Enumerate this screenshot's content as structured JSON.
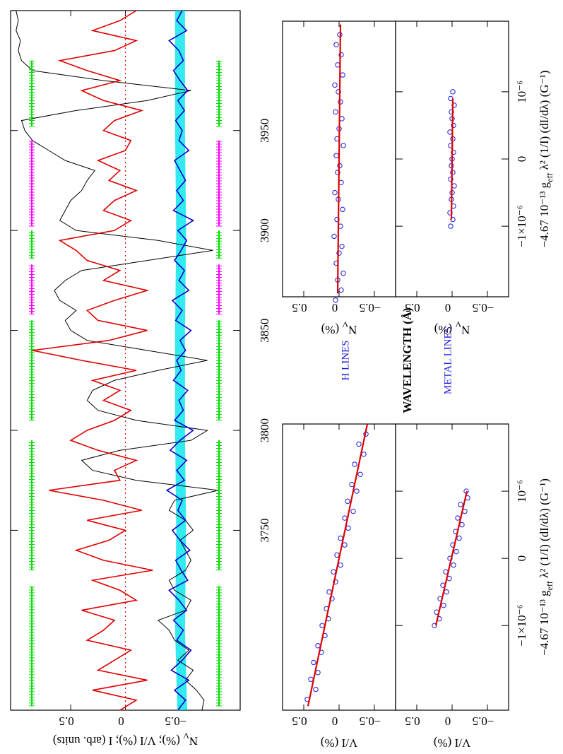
{
  "labels": {
    "h_lines": "H LINES",
    "metal_lines": "METAL LINES"
  },
  "chart_data": [
    {
      "type": "line",
      "xlim": [
        3660,
        4010
      ],
      "xticks": [
        3750,
        3800,
        3850,
        3900,
        3950
      ],
      "ylim": [
        -1.05,
        1.05
      ],
      "yticks": [
        0.5,
        0,
        {
          "value": -0.5,
          "label": "−0.5"
        }
      ],
      "xlabel": "WAVELENGTH (Å)",
      "ylabel": {
        "pre": "N",
        "sub": "V",
        "post": " (%); V/I (%); I (arb. units)"
      },
      "zero_line": true,
      "x": [
        3660,
        3665,
        3670,
        3675,
        3680,
        3685,
        3690,
        3695,
        3700,
        3705,
        3710,
        3715,
        3720,
        3725,
        3730,
        3735,
        3740,
        3745,
        3750,
        3755,
        3760,
        3765,
        3770,
        3775,
        3780,
        3785,
        3790,
        3795,
        3800,
        3805,
        3810,
        3815,
        3820,
        3825,
        3830,
        3835,
        3840,
        3845,
        3850,
        3855,
        3860,
        3865,
        3870,
        3875,
        3880,
        3885,
        3890,
        3895,
        3900,
        3905,
        3910,
        3915,
        3920,
        3925,
        3930,
        3935,
        3940,
        3945,
        3950,
        3955,
        3960,
        3965,
        3970,
        3975,
        3980,
        3985,
        3990,
        3995,
        4000,
        4005,
        4010
      ],
      "series": [
        {
          "color": "#000000",
          "values": [
            -0.7,
            -0.72,
            -0.65,
            -0.55,
            -0.62,
            -0.48,
            -0.58,
            -0.45,
            -0.4,
            -0.3,
            -0.55,
            -0.6,
            -0.45,
            -0.4,
            -0.55,
            -0.6,
            -0.55,
            -0.5,
            -0.62,
            -0.55,
            -0.4,
            -0.45,
            -0.85,
            -0.1,
            0.3,
            0.4,
            0.05,
            -0.6,
            -0.75,
            -0.1,
            0.25,
            0.35,
            0.3,
            0.1,
            -0.3,
            -0.75,
            -0.2,
            0.35,
            0.5,
            0.55,
            0.45,
            0.6,
            0.65,
            0.55,
            0.4,
            -0.2,
            -0.8,
            -0.3,
            0.45,
            0.6,
            0.55,
            0.5,
            0.4,
            0.35,
            0.28,
            0.55,
            0.7,
            0.85,
            0.92,
            0.95,
            0.45,
            -0.2,
            -0.6,
            0.2,
            0.85,
            0.95,
            0.98,
            0.96,
            1.0,
            0.98,
            1.0
          ]
        },
        {
          "color": "#e00000",
          "values": [
            0.05,
            -0.1,
            0.3,
            -0.2,
            0.25,
            0.1,
            -0.05,
            0.35,
            0.2,
            0.1,
            0.4,
            -0.1,
            0.05,
            0.3,
            -0.25,
            0.2,
            0.45,
            0.15,
            0.0,
            0.35,
            -0.15,
            0.2,
            0.7,
            0.05,
            0.1,
            -0.1,
            0.25,
            0.5,
            0.35,
            0.1,
            -0.05,
            0.2,
            0.05,
            0.3,
            -0.1,
            0.4,
            0.85,
            0.15,
            -0.2,
            0.25,
            0.35,
            0.1,
            -0.2,
            0.2,
            0.05,
            0.35,
            0.45,
            0.6,
            0.1,
            -0.05,
            0.2,
            0.1,
            -0.1,
            0.15,
            0.05,
            0.25,
            0.0,
            -0.05,
            0.2,
            0.1,
            -0.15,
            0.2,
            0.4,
            0.05,
            0.35,
            0.6,
            0.1,
            -0.1,
            0.3,
            0.05,
            -0.1
          ]
        },
        {
          "color": "#0000cc",
          "values": [
            -0.48,
            -0.55,
            -0.45,
            -0.58,
            -0.42,
            -0.52,
            -0.6,
            -0.47,
            -0.53,
            -0.44,
            -0.56,
            -0.49,
            -0.4,
            -0.57,
            -0.51,
            -0.46,
            -0.59,
            -0.5,
            -0.43,
            -0.55,
            -0.48,
            -0.52,
            -0.38,
            -0.54,
            -0.47,
            -0.56,
            -0.41,
            -0.5,
            -0.62,
            -0.45,
            -0.53,
            -0.49,
            -0.57,
            -0.44,
            -0.51,
            -0.47,
            -0.55,
            -0.5,
            -0.6,
            -0.46,
            -0.52,
            -0.43,
            -0.58,
            -0.49,
            -0.54,
            -0.45,
            -0.51,
            -0.56,
            -0.48,
            -0.62,
            -0.44,
            -0.53,
            -0.47,
            -0.55,
            -0.5,
            -0.45,
            -0.58,
            -0.49,
            -0.52,
            -0.46,
            -0.54,
            -0.48,
            -0.57,
            -0.5,
            -0.44,
            -0.53,
            -0.49,
            -0.4,
            -0.56,
            -0.47,
            -0.52
          ]
        }
      ],
      "band": {
        "color": "#00e5ee",
        "x": [
          3660,
          3700,
          3750,
          3800,
          3850,
          3900,
          3950,
          4010
        ],
        "values": [
          -0.52,
          -0.5,
          -0.51,
          -0.5,
          -0.5,
          -0.51,
          -0.5,
          -0.5
        ]
      },
      "regions": [
        {
          "color": "#00dd00",
          "range": [
            3662,
            3722
          ]
        },
        {
          "color": "#00dd00",
          "range": [
            3730,
            3795
          ]
        },
        {
          "color": "#00dd00",
          "range": [
            3805,
            3855
          ]
        },
        {
          "color": "#ff00ff",
          "range": [
            3858,
            3883
          ]
        },
        {
          "color": "#00dd00",
          "range": [
            3886,
            3900
          ]
        },
        {
          "color": "#ff00ff",
          "range": [
            3902,
            3945
          ]
        },
        {
          "color": "#00dd00",
          "range": [
            3952,
            3985
          ]
        }
      ]
    },
    {
      "type": "scatter",
      "xlim": [
        -2.26e-06,
        2e-06
      ],
      "ylim": [
        -0.8,
        0.8
      ],
      "yticks": [
        0.5,
        0,
        {
          "value": -0.5,
          "label": "−0.5"
        }
      ],
      "ylabel": "V/I (%)",
      "color": "#1a1adf",
      "x": [
        -2.1e-06,
        -1.95e-06,
        -1.8e-06,
        -1.7e-06,
        -1.55e-06,
        -1.4e-06,
        -1.3e-06,
        -1.15e-06,
        -1e-06,
        -9e-07,
        -7.5e-07,
        -6e-07,
        -5e-07,
        -3.5e-07,
        -2e-07,
        -1e-07,
        5e-08,
        2e-07,
        3e-07,
        4.5e-07,
        6e-07,
        7e-07,
        8.5e-07,
        1e-06,
        1.1e-06,
        1.25e-06,
        1.4e-06,
        1.55e-06,
        1.7e-06,
        1.85e-06
      ],
      "values": [
        0.45,
        0.33,
        0.4,
        0.3,
        0.36,
        0.25,
        0.3,
        0.2,
        0.24,
        0.15,
        0.18,
        0.1,
        0.14,
        0.05,
        0.08,
        -0.02,
        0.03,
        -0.08,
        -0.02,
        -0.13,
        -0.08,
        -0.2,
        -0.12,
        -0.25,
        -0.18,
        -0.3,
        -0.22,
        -0.35,
        -0.28,
        -0.38
      ],
      "fit": {
        "color": "#e00000",
        "x": [
          -2.2e-06,
          2e-06
        ],
        "values": [
          0.44,
          -0.4
        ]
      }
    },
    {
      "type": "scatter",
      "xlim": [
        -2.26e-06,
        2e-06
      ],
      "ylim": [
        -0.8,
        0.8
      ],
      "xticks": [
        {
          "value": -1e-06,
          "label": "−1×10⁻⁶"
        },
        0,
        {
          "value": 1e-06,
          "label": "10⁻⁶"
        }
      ],
      "xlabel": {
        "pre": "−4.67 10⁻¹³ g",
        "sub": "eff",
        "post": " λ² (1/I) (dI/dλ) (G⁻¹)"
      },
      "yticks": [
        0.5,
        0,
        {
          "value": -0.5,
          "label": "−0.5"
        }
      ],
      "ylabel": "V/I (%)",
      "color": "#1a1adf",
      "x": [
        -1e-06,
        -9e-07,
        -8e-07,
        -7e-07,
        -6e-07,
        -5e-07,
        -4e-07,
        -3e-07,
        -2e-07,
        -1e-07,
        0,
        1e-07,
        2e-07,
        3e-07,
        4e-07,
        5e-07,
        6e-07,
        7e-07,
        8e-07,
        9e-07,
        1e-06
      ],
      "values": [
        0.25,
        0.18,
        0.22,
        0.12,
        0.17,
        0.08,
        0.13,
        0.04,
        0.09,
        -0.02,
        0.03,
        -0.06,
        -0.01,
        -0.1,
        -0.05,
        -0.14,
        -0.08,
        -0.18,
        -0.12,
        -0.22,
        -0.2
      ],
      "fit": {
        "color": "#e00000",
        "x": [
          -1e-06,
          1e-06
        ],
        "values": [
          0.23,
          -0.21
        ]
      }
    },
    {
      "type": "scatter",
      "xlim": [
        -2.05e-06,
        2.05e-06
      ],
      "ylim": [
        -0.8,
        0.8
      ],
      "yticks": [
        0.5,
        0,
        {
          "value": -0.5,
          "label": "−0.5"
        }
      ],
      "ylabel": {
        "pre": "N",
        "sub": "V",
        "post": " (%)"
      },
      "color": "#1a1adf",
      "x": [
        -2.1e-06,
        -1.95e-06,
        -1.8e-06,
        -1.7e-06,
        -1.55e-06,
        -1.4e-06,
        -1.3e-06,
        -1.15e-06,
        -1e-06,
        -9e-07,
        -7.5e-07,
        -6e-07,
        -5e-07,
        -3.5e-07,
        -2e-07,
        -1e-07,
        5e-08,
        2e-07,
        3e-07,
        4.5e-07,
        6e-07,
        7e-07,
        8.5e-07,
        1e-06,
        1.1e-06,
        1.25e-06,
        1.4e-06,
        1.55e-06,
        1.7e-06,
        1.85e-06
      ],
      "values": [
        0.05,
        -0.03,
        0.02,
        -0.06,
        0.04,
        0.0,
        -0.04,
        0.07,
        -0.02,
        0.03,
        -0.05,
        0.01,
        0.06,
        -0.03,
        0.02,
        -0.01,
        0.04,
        -0.06,
        0.03,
        0.0,
        -0.04,
        0.05,
        -0.02,
        0.01,
        0.06,
        -0.05,
        0.02,
        -0.03,
        0.04,
        -0.01
      ],
      "fit": {
        "color": "#e00000",
        "x": [
          -2e-06,
          2e-06
        ],
        "values": [
          0.02,
          -0.02
        ]
      }
    },
    {
      "type": "scatter",
      "xlim": [
        -2.05e-06,
        2.05e-06
      ],
      "ylim": [
        -0.8,
        0.8
      ],
      "xticks": [
        {
          "value": -1e-06,
          "label": "−1×10⁻⁶"
        },
        0,
        {
          "value": 1e-06,
          "label": "10⁻⁶"
        }
      ],
      "xlabel": {
        "pre": "−4.67 10⁻¹³ g",
        "sub": "eff",
        "post": " λ² (1/I) (dI/dλ) (G⁻¹)"
      },
      "yticks": [
        0.5,
        0,
        {
          "value": -0.5,
          "label": "−0.5"
        }
      ],
      "ylabel": {
        "pre": "N",
        "sub": "V",
        "post": " (%)"
      },
      "color": "#1a1adf",
      "x": [
        -1e-06,
        -9e-07,
        -8e-07,
        -7e-07,
        -6e-07,
        -5e-07,
        -4e-07,
        -3e-07,
        -2e-07,
        -1e-07,
        0,
        1e-07,
        2e-07,
        3e-07,
        4e-07,
        5e-07,
        6e-07,
        7e-07,
        8e-07,
        9e-07,
        1e-06
      ],
      "values": [
        0.02,
        -0.01,
        0.03,
        -0.02,
        0.01,
        0.0,
        -0.03,
        0.02,
        -0.01,
        0.01,
        0.0,
        -0.02,
        0.02,
        -0.01,
        0.03,
        -0.02,
        0.0,
        0.01,
        -0.03,
        0.02,
        -0.01
      ],
      "fit": {
        "color": "#e00000",
        "x": [
          -9e-07,
          9e-07
        ],
        "values": [
          0.01,
          -0.01
        ]
      }
    }
  ]
}
